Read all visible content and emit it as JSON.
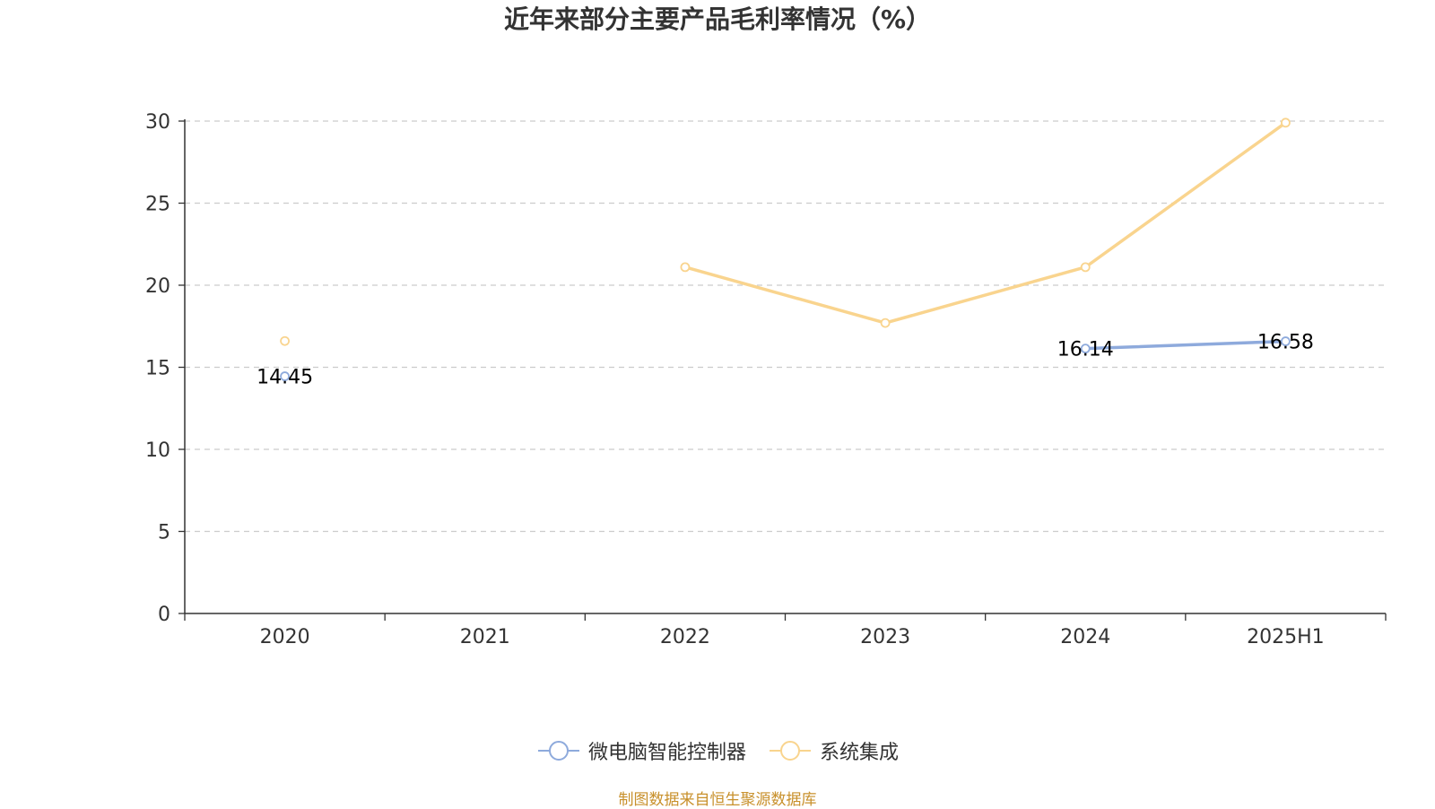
{
  "title": "近年来部分主要产品毛利率情况（%）",
  "source_note": "制图数据来自恒生聚源数据库",
  "colors": {
    "series_1": "#8eaadc",
    "series_2": "#f9d48e",
    "axis": "#333333",
    "grid": "#cccccc",
    "text": "#333333",
    "label": "#000000",
    "source": "#c8902b"
  },
  "chart_data": {
    "type": "line",
    "title": "近年来部分主要产品毛利率情况（%）",
    "xlabel": "",
    "ylabel": "",
    "categories": [
      "2020",
      "2021",
      "2022",
      "2023",
      "2024",
      "2025H1"
    ],
    "ylim": [
      0,
      30
    ],
    "yticks": [
      0,
      5,
      10,
      15,
      20,
      25,
      30
    ],
    "grid": true,
    "legend_position": "bottom",
    "series": [
      {
        "name": "微电脑智能控制器",
        "color": "#8eaadc",
        "values": [
          14.45,
          null,
          null,
          null,
          16.14,
          16.58
        ],
        "labels": [
          "14.45",
          "",
          "",
          "",
          "16.14",
          "16.58"
        ]
      },
      {
        "name": "系统集成",
        "color": "#f9d48e",
        "values": [
          16.6,
          null,
          21.1,
          17.7,
          21.1,
          29.9
        ],
        "labels": [
          "",
          "",
          "",
          "",
          "",
          ""
        ]
      }
    ]
  }
}
